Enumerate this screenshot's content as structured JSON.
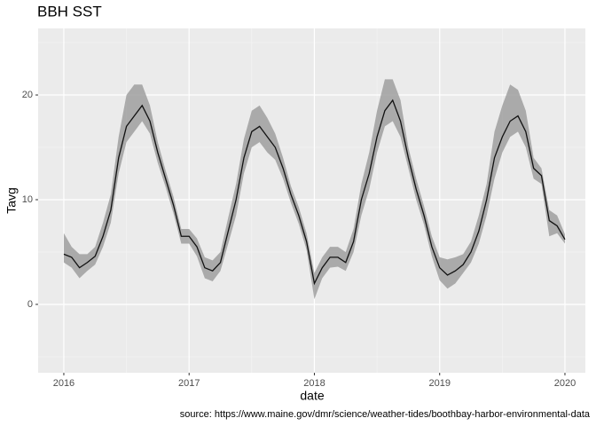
{
  "chart_data": {
    "type": "line",
    "title": "BBH SST",
    "x_label": "date",
    "y_label": "Tavg",
    "caption": "source: https://www.maine.gov/dmr/science/weather-tides/boothbay-harbor-environmental-data",
    "x": [
      2016,
      2016.0625,
      2016.125,
      2016.1875,
      2016.25,
      2016.3125,
      2016.375,
      2016.4375,
      2016.5,
      2016.5625,
      2016.625,
      2016.6875,
      2016.75,
      2016.8125,
      2016.875,
      2016.9375,
      2017,
      2017.0625,
      2017.125,
      2017.1875,
      2017.25,
      2017.3125,
      2017.375,
      2017.4375,
      2017.5,
      2017.5625,
      2017.625,
      2017.6875,
      2017.75,
      2017.8125,
      2017.875,
      2017.9375,
      2018,
      2018.0625,
      2018.125,
      2018.1875,
      2018.25,
      2018.3125,
      2018.375,
      2018.4375,
      2018.5,
      2018.5625,
      2018.625,
      2018.6875,
      2018.75,
      2018.8125,
      2018.875,
      2018.9375,
      2019,
      2019.0625,
      2019.125,
      2019.1875,
      2019.25,
      2019.3125,
      2019.375,
      2019.4375,
      2019.5,
      2019.5625,
      2019.625,
      2019.6875,
      2019.75,
      2019.8125,
      2019.875,
      2019.9375,
      2020
    ],
    "values": [
      4.8,
      4.5,
      3.5,
      4.0,
      4.6,
      6.5,
      9.0,
      14.0,
      17.0,
      18.0,
      19.0,
      17.5,
      14.5,
      12.0,
      9.5,
      6.5,
      6.5,
      5.5,
      3.5,
      3.2,
      4.0,
      7.0,
      10.0,
      14.0,
      16.5,
      17.0,
      16.0,
      15.0,
      13.0,
      10.5,
      8.5,
      6.0,
      2.0,
      3.5,
      4.5,
      4.5,
      4.0,
      6.0,
      10.0,
      12.5,
      16.0,
      18.5,
      19.5,
      17.5,
      14.0,
      11.0,
      8.5,
      5.5,
      3.5,
      2.8,
      3.2,
      3.8,
      5.0,
      7.0,
      10.0,
      14.0,
      16.0,
      17.5,
      18.0,
      16.5,
      13.0,
      12.3,
      8.0,
      7.5,
      6.2
    ],
    "lower": [
      4.0,
      3.5,
      2.5,
      3.2,
      3.8,
      5.5,
      7.8,
      12.5,
      15.5,
      16.5,
      17.5,
      16.3,
      13.5,
      11.2,
      8.7,
      5.8,
      5.8,
      4.6,
      2.5,
      2.2,
      3.2,
      5.8,
      8.5,
      12.5,
      15.0,
      15.5,
      14.5,
      13.8,
      12.0,
      9.7,
      7.7,
      5.2,
      0.5,
      2.5,
      3.5,
      3.6,
      3.2,
      5.0,
      8.5,
      11.0,
      14.5,
      17.0,
      17.5,
      16.0,
      13.0,
      10.0,
      7.6,
      4.6,
      2.3,
      1.5,
      2.0,
      3.0,
      4.0,
      5.8,
      8.5,
      12.0,
      14.5,
      16.0,
      16.5,
      15.0,
      12.0,
      11.5,
      6.5,
      6.8,
      5.8
    ],
    "upper": [
      6.8,
      5.5,
      4.8,
      4.8,
      5.5,
      7.8,
      10.5,
      16.0,
      20.0,
      21.0,
      21.0,
      19.0,
      15.5,
      12.8,
      10.3,
      7.2,
      7.2,
      6.3,
      4.5,
      4.2,
      5.0,
      8.3,
      11.5,
      15.8,
      18.5,
      19.0,
      17.8,
      16.3,
      14.0,
      11.3,
      9.3,
      6.8,
      3.0,
      4.5,
      5.5,
      5.5,
      5.0,
      7.2,
      11.5,
      14.5,
      18.5,
      21.5,
      21.5,
      19.5,
      15.0,
      12.0,
      9.4,
      6.5,
      4.5,
      4.3,
      4.5,
      4.8,
      6.0,
      8.5,
      11.5,
      16.5,
      19.0,
      21.0,
      20.5,
      18.5,
      14.0,
      13.0,
      9.0,
      8.5,
      6.7
    ],
    "color": "#111111",
    "ribbon_color": "#9a9a9a",
    "xlim": [
      2015.795,
      2020.163
    ],
    "xticks": [
      2016,
      2017,
      2018,
      2019,
      2020
    ],
    "minor_xticks": [
      2016.5,
      2017.5,
      2018.5,
      2019.5
    ],
    "ylim": [
      -6.53,
      26.36
    ],
    "yticks": [
      0,
      10,
      20
    ],
    "minor_yticks": [
      -5,
      5,
      15,
      25
    ],
    "grid": true
  }
}
